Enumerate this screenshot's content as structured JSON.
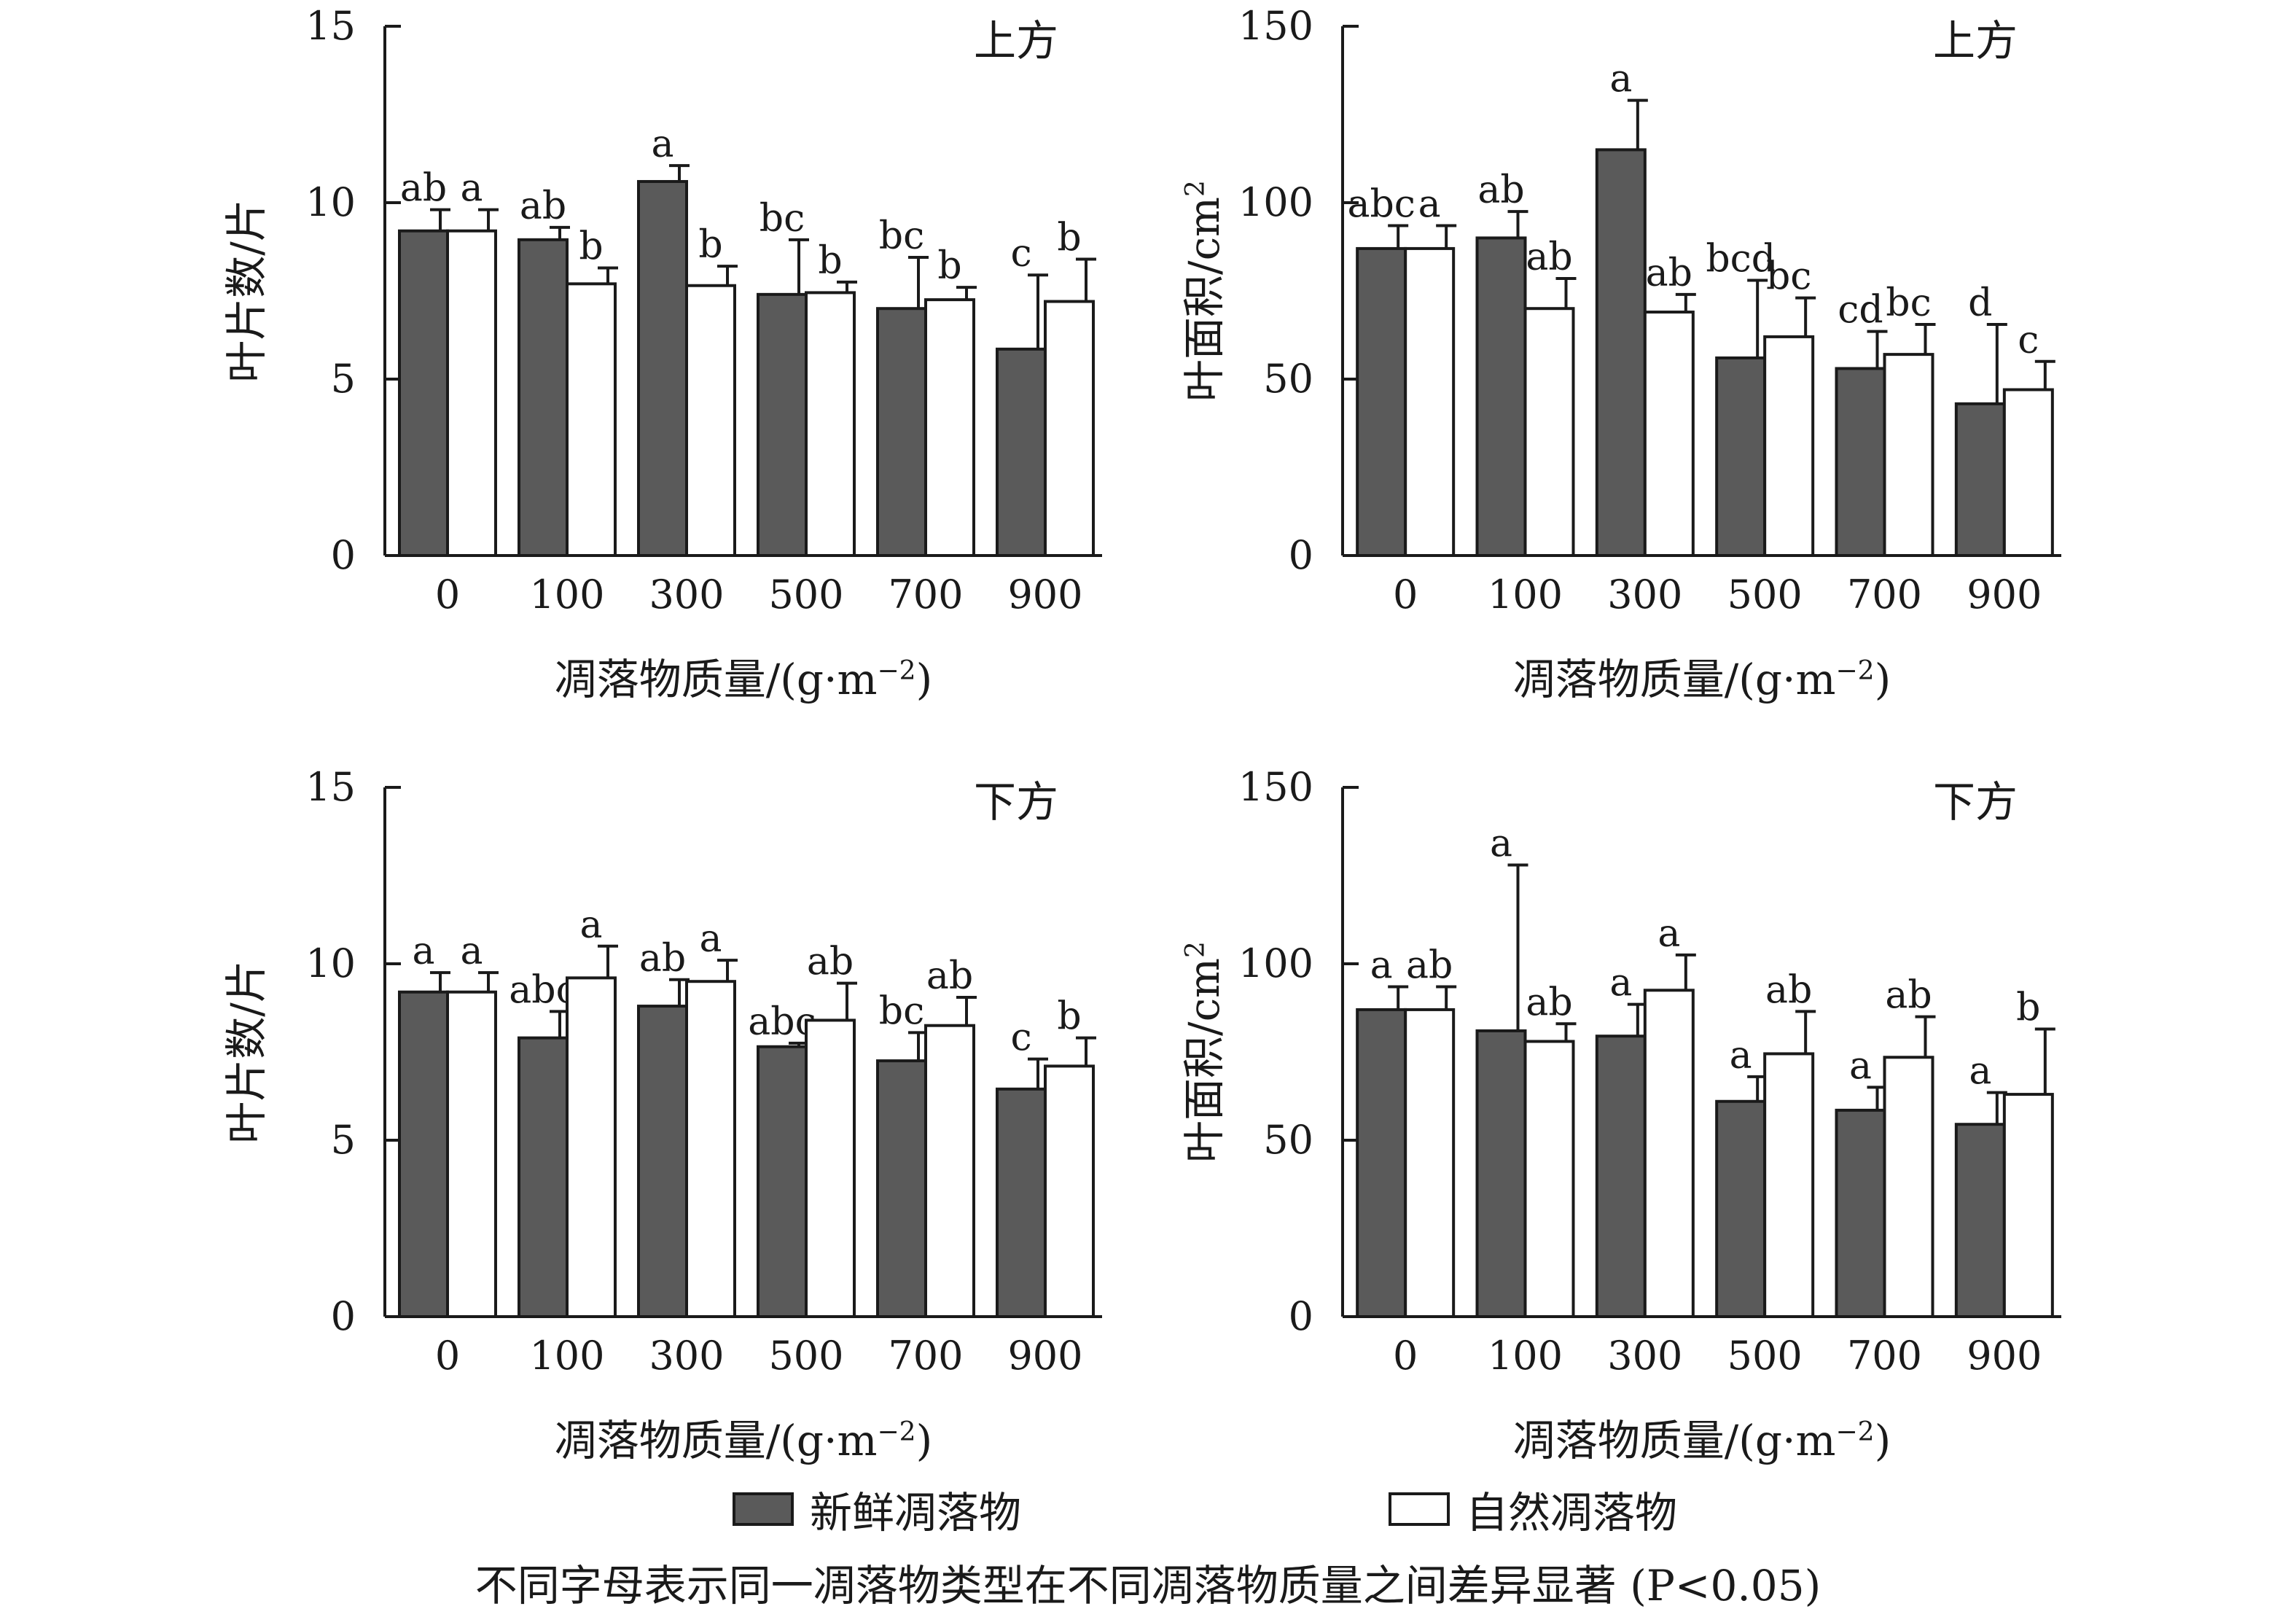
{
  "colors": {
    "fresh": "#5a5a5a",
    "natural": "#ffffff",
    "axis": "#1a1a1a"
  },
  "legend": {
    "fresh": "新鲜凋落物",
    "natural": "自然凋落物"
  },
  "note": "不同字母表示同一凋落物类型在不同凋落物质量之间差异显著 (P<0.05)",
  "chart_data": [
    {
      "type": "bar",
      "title": "上方",
      "xlabel": "凋落物质量/(g·m⁻²)",
      "ylabel": "叶片数/片",
      "ylim": [
        0,
        15
      ],
      "yticks": [
        0,
        5,
        10,
        15
      ],
      "categories": [
        "0",
        "100",
        "300",
        "500",
        "700",
        "900"
      ],
      "series": [
        {
          "name": "新鲜凋落物",
          "values": [
            9.2,
            8.95,
            10.6,
            7.4,
            7.0,
            5.85
          ],
          "errors": [
            0.6,
            0.35,
            0.45,
            1.55,
            1.45,
            2.1
          ],
          "letters": [
            "ab",
            "ab",
            "a",
            "bc",
            "bc",
            "c"
          ]
        },
        {
          "name": "自然凋落物",
          "values": [
            9.2,
            7.7,
            7.65,
            7.45,
            7.25,
            7.2
          ],
          "errors": [
            0.6,
            0.45,
            0.55,
            0.3,
            0.35,
            1.2
          ],
          "letters": [
            "a",
            "b",
            "b",
            "b",
            "b",
            "b"
          ]
        }
      ]
    },
    {
      "type": "bar",
      "title": "上方",
      "xlabel": "凋落物质量/(g·m⁻²)",
      "ylabel": "叶面积/cm²",
      "ylim": [
        0,
        150
      ],
      "yticks": [
        0,
        50,
        100,
        150
      ],
      "categories": [
        "0",
        "100",
        "300",
        "500",
        "700",
        "900"
      ],
      "series": [
        {
          "name": "新鲜凋落物",
          "values": [
            87,
            90,
            115,
            56,
            53,
            43
          ],
          "errors": [
            6.5,
            7.5,
            14,
            22,
            10.5,
            22.5
          ],
          "letters": [
            "abc",
            "ab",
            "a",
            "bcd",
            "cd",
            "d"
          ]
        },
        {
          "name": "自然凋落物",
          "values": [
            87,
            70,
            69,
            62,
            57,
            47
          ],
          "errors": [
            6.5,
            8.5,
            5,
            11,
            8.5,
            8
          ],
          "letters": [
            "a",
            "ab",
            "ab",
            "bc",
            "bc",
            "c"
          ]
        }
      ]
    },
    {
      "type": "bar",
      "title": "下方",
      "xlabel": "凋落物质量/(g·m⁻²)",
      "ylabel": "叶片数/片",
      "ylim": [
        0,
        15
      ],
      "yticks": [
        0,
        5,
        10,
        15
      ],
      "categories": [
        "0",
        "100",
        "300",
        "500",
        "700",
        "900"
      ],
      "series": [
        {
          "name": "新鲜凋落物",
          "values": [
            9.2,
            7.9,
            8.8,
            7.65,
            7.25,
            6.45
          ],
          "errors": [
            0.55,
            0.75,
            0.75,
            0.1,
            0.8,
            0.85
          ],
          "letters": [
            "a",
            "abc",
            "ab",
            "abc",
            "bc",
            "c"
          ]
        },
        {
          "name": "自然凋落物",
          "values": [
            9.2,
            9.6,
            9.5,
            8.4,
            8.25,
            7.1
          ],
          "errors": [
            0.55,
            0.9,
            0.6,
            1.05,
            0.8,
            0.8
          ],
          "letters": [
            "a",
            "a",
            "a",
            "ab",
            "ab",
            "b"
          ]
        }
      ]
    },
    {
      "type": "bar",
      "title": "下方",
      "xlabel": "凋落物质量/(g·m⁻²)",
      "ylabel": "叶面积/cm²",
      "ylim": [
        0,
        150
      ],
      "yticks": [
        0,
        50,
        100,
        150
      ],
      "categories": [
        "0",
        "100",
        "300",
        "500",
        "700",
        "900"
      ],
      "series": [
        {
          "name": "新鲜凋落物",
          "values": [
            87,
            81,
            79.5,
            61,
            58.5,
            54.5
          ],
          "errors": [
            6.5,
            47,
            9,
            7,
            6.5,
            9
          ],
          "letters": [
            "a",
            "a",
            "a",
            "a",
            "a",
            "a"
          ]
        },
        {
          "name": "自然凋落物",
          "values": [
            87,
            78,
            92.5,
            74.5,
            73.5,
            63
          ],
          "errors": [
            6.5,
            5,
            10,
            12,
            11.5,
            18.5
          ],
          "letters": [
            "ab",
            "ab",
            "a",
            "ab",
            "ab",
            "b"
          ]
        }
      ]
    }
  ]
}
